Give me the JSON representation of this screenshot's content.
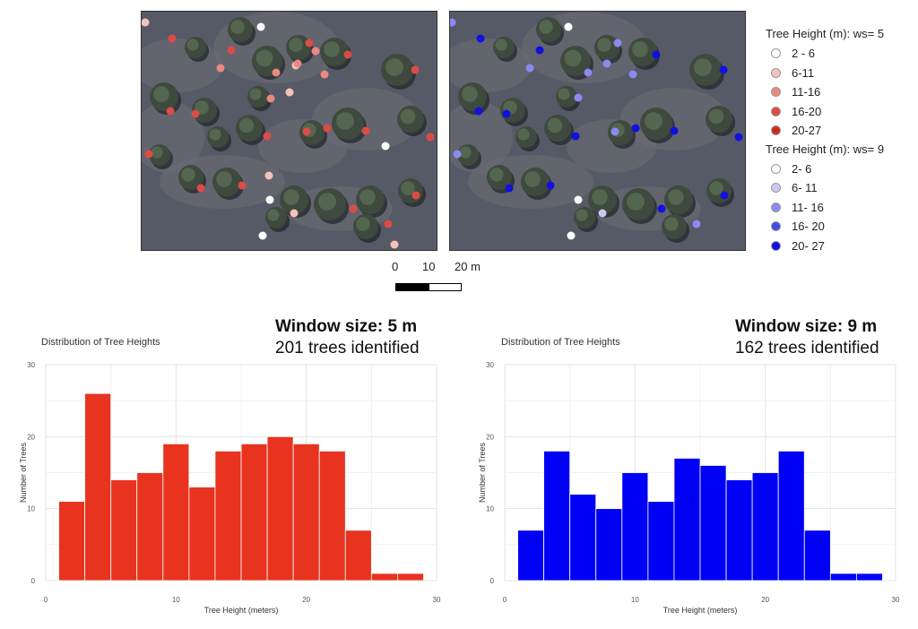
{
  "legend": {
    "ws5": {
      "title": "Tree Height (m): ws= 5",
      "items": [
        {
          "label": "2 - 6",
          "color": "#ffffff"
        },
        {
          "label": "6-11",
          "color": "#f3c2bb"
        },
        {
          "label": "11-16",
          "color": "#e88a82"
        },
        {
          "label": "16-20",
          "color": "#dc4c45"
        },
        {
          "label": "20-27",
          "color": "#cc2a1e"
        }
      ]
    },
    "ws9": {
      "title": "Tree Height (m): ws= 9",
      "items": [
        {
          "label": "2- 6",
          "color": "#ffffff"
        },
        {
          "label": "6- 11",
          "color": "#c9c9f4"
        },
        {
          "label": "11- 16",
          "color": "#8a8af0"
        },
        {
          "label": "16- 20",
          "color": "#4848ea"
        },
        {
          "label": "20- 27",
          "color": "#1010e0"
        }
      ]
    }
  },
  "scalebar": {
    "labels": [
      "0",
      "10",
      "20 m"
    ]
  },
  "charts_header": {
    "left": {
      "window": "Window size: 5 m",
      "count": "201 trees identified"
    },
    "right": {
      "window": "Window size: 9 m",
      "count": "162 trees identified"
    }
  },
  "chart_data": [
    {
      "type": "bar",
      "title": "Distribution of Tree Heights",
      "xlabel": "Tree Height (meters)",
      "ylabel": "Number of Trees",
      "color": "#e8331f",
      "bin_start": 1,
      "bin_width": 2,
      "values": [
        11,
        26,
        14,
        15,
        19,
        13,
        18,
        19,
        20,
        19,
        18,
        7,
        1,
        1
      ],
      "xlim": [
        0,
        30
      ],
      "ylim": [
        0,
        30
      ],
      "xticks": [
        0,
        10,
        20,
        30
      ],
      "yticks": [
        0,
        10,
        20,
        30
      ],
      "grid": true
    },
    {
      "type": "bar",
      "title": "Distribution of Tree Heights",
      "xlabel": "Tree Height (meters)",
      "ylabel": "Number of Trees",
      "color": "#0000f5",
      "bin_start": 1,
      "bin_width": 2,
      "values": [
        7,
        18,
        12,
        10,
        15,
        11,
        17,
        16,
        14,
        15,
        18,
        7,
        1,
        1
      ],
      "xlim": [
        0,
        30
      ],
      "ylim": [
        0,
        30
      ],
      "xticks": [
        0,
        10,
        20,
        30
      ],
      "yticks": [
        0,
        10,
        20,
        30
      ],
      "grid": true
    }
  ]
}
